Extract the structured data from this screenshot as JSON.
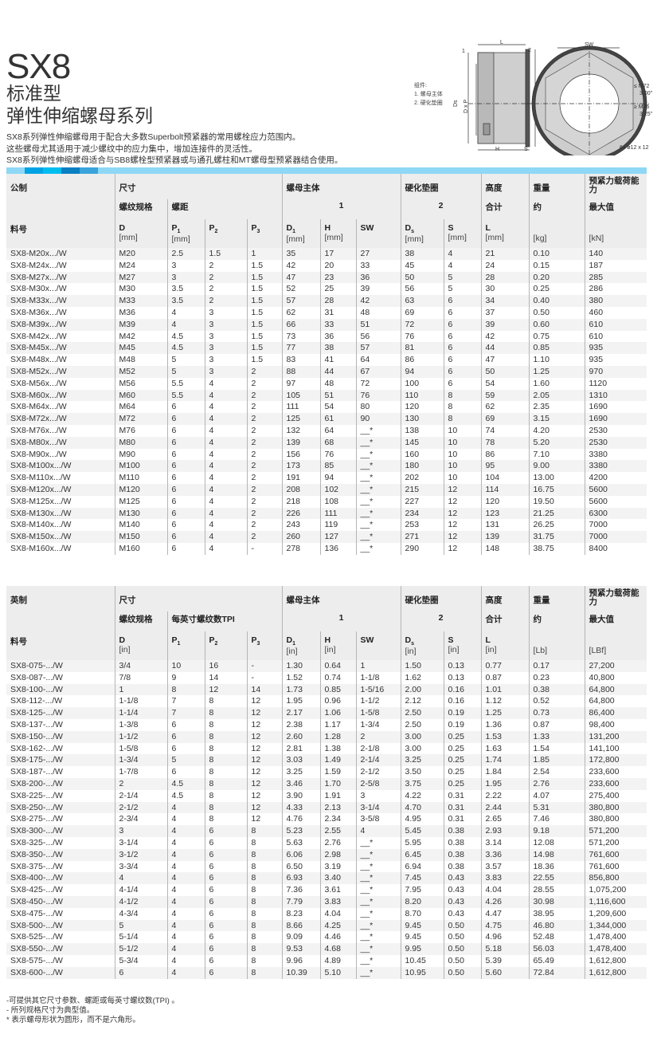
{
  "header": {
    "title": "SX8",
    "subtitle1": "标准型",
    "subtitle2": "弹性伸缩螺母系列",
    "desc": [
      "SX8系列弹性伸缩螺母用于配合大多数Superbolt预紧器的常用螺栓应力范围内。",
      "这些螺母尤其适用于减少螺纹中的应力集中，增加连接件的灵活性。",
      "SX8系列弹性伸缩螺母适合与SB8螺栓型预紧器或与通孔螺柱和MT螺母型预紧器结合使用。"
    ]
  },
  "diagram": {
    "legend_title": "组件:",
    "legend_1": "1. 螺母主体",
    "legend_2": "2. 硬化垫圈",
    "label_L": "L",
    "label_1": "1",
    "label_2": "2",
    "label_SW": "SW",
    "label_H": "H",
    "label_S": "S",
    "label_Ds": "Ds",
    "label_DxP": "D x P",
    "label_D1": "D1",
    "note_m72": "≤ M72",
    "note_300": "3.00\"",
    "note_m76": "≥ M76",
    "note_325": "3.25\"",
    "holes": "6x ø12 x 12"
  },
  "colors": {
    "stripe": [
      "#8ed8f6",
      "#00a3e3",
      "#00bdf0",
      "#0a7fc2",
      "#39a3dc"
    ]
  },
  "metric": {
    "h1": [
      "公制",
      "尺寸",
      "螺母主体",
      "硬化垫圈",
      "高度",
      "重量",
      "预紧力载荷能力"
    ],
    "h2": [
      "螺纹规格",
      "螺距",
      "1",
      "2",
      "合计",
      "约",
      "最大值"
    ],
    "h3": [
      "料号",
      "D",
      "P1",
      "P2",
      "P3",
      "D1",
      "H",
      "SW",
      "Ds",
      "S",
      "L",
      "",
      ""
    ],
    "units": [
      "",
      "[mm]",
      "[mm]",
      "",
      "",
      "[mm]",
      "[mm]",
      "",
      "[mm]",
      "[mm]",
      "[mm]",
      "[kg]",
      "[kN]"
    ],
    "rows": [
      [
        "SX8-M20x.../W",
        "M20",
        "2.5",
        "1.5",
        "1",
        "35",
        "17",
        "27",
        "38",
        "4",
        "21",
        "0.10",
        "140"
      ],
      [
        "SX8-M24x.../W",
        "M24",
        "3",
        "2",
        "1.5",
        "42",
        "20",
        "33",
        "45",
        "4",
        "24",
        "0.15",
        "187"
      ],
      [
        "SX8-M27x.../W",
        "M27",
        "3",
        "2",
        "1.5",
        "47",
        "23",
        "36",
        "50",
        "5",
        "28",
        "0.20",
        "285"
      ],
      [
        "SX8-M30x.../W",
        "M30",
        "3.5",
        "2",
        "1.5",
        "52",
        "25",
        "39",
        "56",
        "5",
        "30",
        "0.25",
        "286"
      ],
      [
        "SX8-M33x.../W",
        "M33",
        "3.5",
        "2",
        "1.5",
        "57",
        "28",
        "42",
        "63",
        "6",
        "34",
        "0.40",
        "380"
      ],
      [
        "SX8-M36x.../W",
        "M36",
        "4",
        "3",
        "1.5",
        "62",
        "31",
        "48",
        "69",
        "6",
        "37",
        "0.50",
        "460"
      ],
      [
        "SX8-M39x.../W",
        "M39",
        "4",
        "3",
        "1.5",
        "66",
        "33",
        "51",
        "72",
        "6",
        "39",
        "0.60",
        "610"
      ],
      [
        "SX8-M42x.../W",
        "M42",
        "4.5",
        "3",
        "1.5",
        "73",
        "36",
        "56",
        "76",
        "6",
        "42",
        "0.75",
        "610"
      ],
      [
        "SX8-M45x.../W",
        "M45",
        "4.5",
        "3",
        "1.5",
        "77",
        "38",
        "57",
        "81",
        "6",
        "44",
        "0.85",
        "935"
      ],
      [
        "SX8-M48x.../W",
        "M48",
        "5",
        "3",
        "1.5",
        "83",
        "41",
        "64",
        "86",
        "6",
        "47",
        "1.10",
        "935"
      ],
      [
        "SX8-M52x.../W",
        "M52",
        "5",
        "3",
        "2",
        "88",
        "44",
        "67",
        "94",
        "6",
        "50",
        "1.25",
        "970"
      ],
      [
        "SX8-M56x.../W",
        "M56",
        "5.5",
        "4",
        "2",
        "97",
        "48",
        "72",
        "100",
        "6",
        "54",
        "1.60",
        "1120"
      ],
      [
        "SX8-M60x.../W",
        "M60",
        "5.5",
        "4",
        "2",
        "105",
        "51",
        "76",
        "110",
        "8",
        "59",
        "2.05",
        "1310"
      ],
      [
        "SX8-M64x.../W",
        "M64",
        "6",
        "4",
        "2",
        "111",
        "54",
        "80",
        "120",
        "8",
        "62",
        "2.35",
        "1690"
      ],
      [
        "SX8-M72x.../W",
        "M72",
        "6",
        "4",
        "2",
        "125",
        "61",
        "90",
        "130",
        "8",
        "69",
        "3.15",
        "1690"
      ],
      [
        "SX8-M76x.../W",
        "M76",
        "6",
        "4",
        "2",
        "132",
        "64",
        "__*",
        "138",
        "10",
        "74",
        "4.20",
        "2530"
      ],
      [
        "SX8-M80x.../W",
        "M80",
        "6",
        "4",
        "2",
        "139",
        "68",
        "__*",
        "145",
        "10",
        "78",
        "5.20",
        "2530"
      ],
      [
        "SX8-M90x.../W",
        "M90",
        "6",
        "4",
        "2",
        "156",
        "76",
        "__*",
        "160",
        "10",
        "86",
        "7.10",
        "3380"
      ],
      [
        "SX8-M100x.../W",
        "M100",
        "6",
        "4",
        "2",
        "173",
        "85",
        "__*",
        "180",
        "10",
        "95",
        "9.00",
        "3380"
      ],
      [
        "SX8-M110x.../W",
        "M110",
        "6",
        "4",
        "2",
        "191",
        "94",
        "__*",
        "202",
        "10",
        "104",
        "13.00",
        "4200"
      ],
      [
        "SX8-M120x.../W",
        "M120",
        "6",
        "4",
        "2",
        "208",
        "102",
        "__*",
        "215",
        "12",
        "114",
        "16.75",
        "5600"
      ],
      [
        "SX8-M125x.../W",
        "M125",
        "6",
        "4",
        "2",
        "218",
        "108",
        "__*",
        "227",
        "12",
        "120",
        "19.50",
        "5600"
      ],
      [
        "SX8-M130x.../W",
        "M130",
        "6",
        "4",
        "2",
        "226",
        "111",
        "__*",
        "234",
        "12",
        "123",
        "21.25",
        "6300"
      ],
      [
        "SX8-M140x.../W",
        "M140",
        "6",
        "4",
        "2",
        "243",
        "119",
        "__*",
        "253",
        "12",
        "131",
        "26.25",
        "7000"
      ],
      [
        "SX8-M150x.../W",
        "M150",
        "6",
        "4",
        "2",
        "260",
        "127",
        "__*",
        "271",
        "12",
        "139",
        "31.75",
        "7000"
      ],
      [
        "SX8-M160x.../W",
        "M160",
        "6",
        "4",
        "-",
        "278",
        "136",
        "__*",
        "290",
        "12",
        "148",
        "38.75",
        "8400"
      ]
    ]
  },
  "imperial": {
    "h1": [
      "英制",
      "尺寸",
      "螺母主体",
      "硬化垫圈",
      "高度",
      "重量",
      "预紧力载荷能力"
    ],
    "h2": [
      "螺纹规格",
      "每英寸螺纹数TPI",
      "1",
      "2",
      "合计",
      "约",
      "最大值"
    ],
    "h3": [
      "料号",
      "D",
      "P1",
      "P2",
      "P3",
      "D1",
      "H",
      "SW",
      "Ds",
      "S",
      "L",
      "",
      ""
    ],
    "units": [
      "",
      "[in]",
      "",
      "",
      "",
      "[in]",
      "[in]",
      "",
      "[in]",
      "[in]",
      "[in]",
      "[Lb]",
      "[LBf]"
    ],
    "rows": [
      [
        "SX8-075-.../W",
        "3/4",
        "10",
        "16",
        "-",
        "1.30",
        "0.64",
        "1",
        "1.50",
        "0.13",
        "0.77",
        "0.17",
        "27,200"
      ],
      [
        "SX8-087-.../W",
        "7/8",
        "9",
        "14",
        "-",
        "1.52",
        "0.74",
        "1-1/8",
        "1.62",
        "0.13",
        "0.87",
        "0.23",
        "40,800"
      ],
      [
        "SX8-100-.../W",
        "1",
        "8",
        "12",
        "14",
        "1.73",
        "0.85",
        "1-5/16",
        "2.00",
        "0.16",
        "1.01",
        "0.38",
        "64,800"
      ],
      [
        "SX8-112-.../W",
        "1-1/8",
        "7",
        "8",
        "12",
        "1.95",
        "0.96",
        "1-1/2",
        "2.12",
        "0.16",
        "1.12",
        "0.52",
        "64,800"
      ],
      [
        "SX8-125-.../W",
        "1-1/4",
        "7",
        "8",
        "12",
        "2.17",
        "1.06",
        "1-5/8",
        "2.50",
        "0.19",
        "1.25",
        "0.73",
        "86,400"
      ],
      [
        "SX8-137-.../W",
        "1-3/8",
        "6",
        "8",
        "12",
        "2.38",
        "1.17",
        "1-3/4",
        "2.50",
        "0.19",
        "1.36",
        "0.87",
        "98,400"
      ],
      [
        "SX8-150-.../W",
        "1-1/2",
        "6",
        "8",
        "12",
        "2.60",
        "1.28",
        "2",
        "3.00",
        "0.25",
        "1.53",
        "1.33",
        "131,200"
      ],
      [
        "SX8-162-.../W",
        "1-5/8",
        "6",
        "8",
        "12",
        "2.81",
        "1.38",
        "2-1/8",
        "3.00",
        "0.25",
        "1.63",
        "1.54",
        "141,100"
      ],
      [
        "SX8-175-.../W",
        "1-3/4",
        "5",
        "8",
        "12",
        "3.03",
        "1.49",
        "2-1/4",
        "3.25",
        "0.25",
        "1.74",
        "1.85",
        "172,800"
      ],
      [
        "SX8-187-.../W",
        "1-7/8",
        "6",
        "8",
        "12",
        "3.25",
        "1.59",
        "2-1/2",
        "3.50",
        "0.25",
        "1.84",
        "2.54",
        "233,600"
      ],
      [
        "SX8-200-.../W",
        "2",
        "4.5",
        "8",
        "12",
        "3.46",
        "1.70",
        "2-5/8",
        "3.75",
        "0.25",
        "1.95",
        "2.76",
        "233,600"
      ],
      [
        "SX8-225-.../W",
        "2-1/4",
        "4.5",
        "8",
        "12",
        "3.90",
        "1.91",
        "3",
        "4.22",
        "0.31",
        "2.22",
        "4.07",
        "275,400"
      ],
      [
        "SX8-250-.../W",
        "2-1/2",
        "4",
        "8",
        "12",
        "4.33",
        "2.13",
        "3-1/4",
        "4.70",
        "0.31",
        "2.44",
        "5.31",
        "380,800"
      ],
      [
        "SX8-275-.../W",
        "2-3/4",
        "4",
        "8",
        "12",
        "4.76",
        "2.34",
        "3-5/8",
        "4.95",
        "0.31",
        "2.65",
        "7.46",
        "380,800"
      ],
      [
        "SX8-300-.../W",
        "3",
        "4",
        "6",
        "8",
        "5.23",
        "2.55",
        "4",
        "5.45",
        "0.38",
        "2.93",
        "9.18",
        "571,200"
      ],
      [
        "SX8-325-.../W",
        "3-1/4",
        "4",
        "6",
        "8",
        "5.63",
        "2.76",
        "__*",
        "5.95",
        "0.38",
        "3.14",
        "12.08",
        "571,200"
      ],
      [
        "SX8-350-.../W",
        "3-1/2",
        "4",
        "6",
        "8",
        "6.06",
        "2.98",
        "__*",
        "6.45",
        "0.38",
        "3.36",
        "14.98",
        "761,600"
      ],
      [
        "SX8-375-.../W",
        "3-3/4",
        "4",
        "6",
        "8",
        "6.50",
        "3.19",
        "__*",
        "6.94",
        "0.38",
        "3.57",
        "18.36",
        "761,600"
      ],
      [
        "SX8-400-.../W",
        "4",
        "4",
        "6",
        "8",
        "6.93",
        "3.40",
        "__*",
        "7.45",
        "0.43",
        "3.83",
        "22.55",
        "856,800"
      ],
      [
        "SX8-425-.../W",
        "4-1/4",
        "4",
        "6",
        "8",
        "7.36",
        "3.61",
        "__*",
        "7.95",
        "0.43",
        "4.04",
        "28.55",
        "1,075,200"
      ],
      [
        "SX8-450-.../W",
        "4-1/2",
        "4",
        "6",
        "8",
        "7.79",
        "3.83",
        "__*",
        "8.20",
        "0.43",
        "4.26",
        "30.98",
        "1,116,600"
      ],
      [
        "SX8-475-.../W",
        "4-3/4",
        "4",
        "6",
        "8",
        "8.23",
        "4.04",
        "__*",
        "8.70",
        "0.43",
        "4.47",
        "38.95",
        "1,209,600"
      ],
      [
        "SX8-500-.../W",
        "5",
        "4",
        "6",
        "8",
        "8.66",
        "4.25",
        "__*",
        "9.45",
        "0.50",
        "4.75",
        "46.80",
        "1,344,000"
      ],
      [
        "SX8-525-.../W",
        "5-1/4",
        "4",
        "6",
        "8",
        "9.09",
        "4.46",
        "__*",
        "9.45",
        "0.50",
        "4.96",
        "52.48",
        "1,478,400"
      ],
      [
        "SX8-550-.../W",
        "5-1/2",
        "4",
        "6",
        "8",
        "9.53",
        "4.68",
        "__*",
        "9.95",
        "0.50",
        "5.18",
        "56.03",
        "1,478,400"
      ],
      [
        "SX8-575-.../W",
        "5-3/4",
        "4",
        "6",
        "8",
        "9.96",
        "4.89",
        "__*",
        "10.45",
        "0.50",
        "5.39",
        "65.49",
        "1,612,800"
      ],
      [
        "SX8-600-.../W",
        "6",
        "4",
        "6",
        "8",
        "10.39",
        "5.10",
        "__*",
        "10.95",
        "0.50",
        "5.60",
        "72.84",
        "1,612,800"
      ]
    ]
  },
  "notes": [
    "-可提供其它尺寸参数、螺距或每英寸螺纹数(TPI) 。",
    "- 所列规格尺寸为典型值。",
    "* 表示螺母形状为圆形，而不是六角形。"
  ]
}
